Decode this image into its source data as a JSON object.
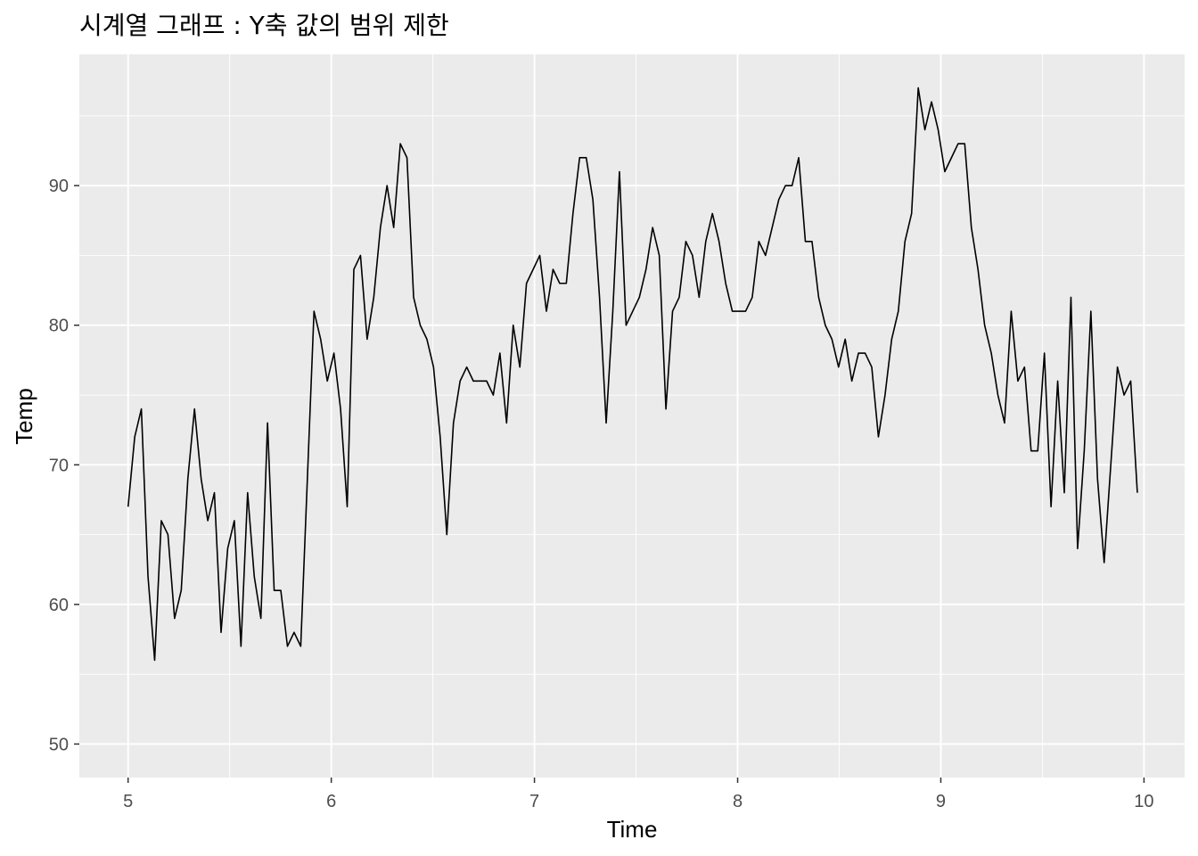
{
  "chart_data": {
    "type": "line",
    "title": "시계열 그래프 : Y축 값의 범위 제한",
    "xlabel": "Time",
    "ylabel": "Temp",
    "xlim": [
      4.76,
      10.2
    ],
    "ylim": [
      47.6,
      99.4
    ],
    "x_ticks": [
      5,
      6,
      7,
      8,
      9,
      10
    ],
    "x_tick_labels": [
      "5",
      "6",
      "7",
      "8",
      "9",
      "10"
    ],
    "y_ticks": [
      50,
      60,
      70,
      80,
      90
    ],
    "y_tick_labels": [
      "50",
      "60",
      "70",
      "80",
      "90"
    ],
    "x_minor_breaks": [
      5.5,
      6.5,
      7.5,
      8.5,
      9.5
    ],
    "y_minor_breaks": [
      55,
      65,
      75,
      85,
      95
    ],
    "grid": true,
    "legend": "none",
    "panel_color": "#ebebeb",
    "grid_color": "#ffffff",
    "line_color": "#000000",
    "x_start": 5,
    "x_step": 0.0326797,
    "series": [
      {
        "values": [
          67,
          72,
          74,
          62,
          56,
          66,
          65,
          59,
          61,
          69,
          74,
          69,
          66,
          68,
          58,
          64,
          66,
          57,
          68,
          62,
          59,
          73,
          61,
          61,
          57,
          58,
          57,
          69,
          81,
          79,
          76,
          78,
          74,
          67,
          84,
          85,
          79,
          82,
          87,
          90,
          87,
          93,
          92,
          82,
          80,
          79,
          77,
          72,
          65,
          73,
          76,
          77,
          76,
          76,
          76,
          75,
          78,
          73,
          80,
          77,
          83,
          84,
          85,
          81,
          84,
          83,
          83,
          88,
          92,
          92,
          89,
          82,
          73,
          81,
          91,
          80,
          81,
          82,
          84,
          87,
          85,
          74,
          81,
          82,
          86,
          85,
          82,
          86,
          88,
          86,
          83,
          81,
          81,
          81,
          82,
          86,
          85,
          87,
          89,
          90,
          90,
          92,
          86,
          86,
          82,
          80,
          79,
          77,
          79,
          76,
          78,
          78,
          77,
          72,
          75,
          79,
          81,
          86,
          88,
          97,
          94,
          96,
          94,
          91,
          92,
          93,
          93,
          87,
          84,
          80,
          78,
          75,
          73,
          81,
          76,
          77,
          71,
          71,
          78,
          67,
          76,
          68,
          82,
          64,
          71,
          81,
          69,
          63,
          70,
          77,
          75,
          76,
          68
        ]
      }
    ]
  }
}
